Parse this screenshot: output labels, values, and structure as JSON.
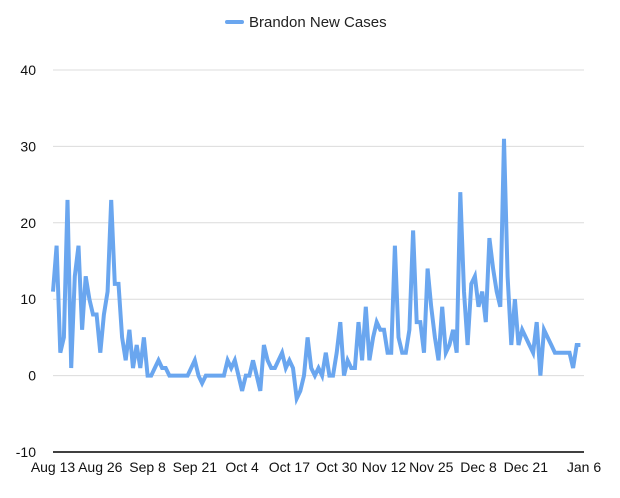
{
  "chart_data": {
    "type": "line",
    "legend": {
      "placement": "top-center",
      "label": "Brandon New Cases"
    },
    "color": "#6aa6ef",
    "grid": true,
    "ylim": [
      -10,
      40
    ],
    "yticks": [
      -10,
      0,
      10,
      20,
      30,
      40
    ],
    "ytick_labels": [
      "-10",
      "0",
      "10",
      "20",
      "30",
      "40"
    ],
    "xlim": [
      "2020-08-13",
      "2021-01-06"
    ],
    "xticks": [
      {
        "date": "2020-08-13",
        "label": "Aug 13"
      },
      {
        "date": "2020-08-26",
        "label": "Aug 26"
      },
      {
        "date": "2020-09-08",
        "label": "Sep 8"
      },
      {
        "date": "2020-09-21",
        "label": "Sep 21"
      },
      {
        "date": "2020-10-04",
        "label": "Oct 4"
      },
      {
        "date": "2020-10-17",
        "label": "Oct 17"
      },
      {
        "date": "2020-10-30",
        "label": "Oct 30"
      },
      {
        "date": "2020-11-12",
        "label": "Nov 12"
      },
      {
        "date": "2020-11-25",
        "label": "Nov 25"
      },
      {
        "date": "2020-12-08",
        "label": "Dec 8"
      },
      {
        "date": "2020-12-21",
        "label": "Dec 21"
      },
      {
        "date": "2021-01-06",
        "label": "Jan 6"
      }
    ],
    "series": [
      {
        "name": "Brandon New Cases",
        "start_date": "2020-08-13",
        "values": [
          11,
          17,
          3,
          5,
          23,
          1,
          13,
          17,
          6,
          13,
          10,
          8,
          8,
          3,
          8,
          11,
          23,
          12,
          12,
          5,
          2,
          6,
          1,
          4,
          1,
          5,
          0,
          0,
          1,
          2,
          1,
          1,
          0,
          0,
          0,
          0,
          0,
          0,
          1,
          2,
          0,
          -1,
          0,
          0,
          0,
          0,
          0,
          0,
          2,
          1,
          2,
          0,
          -2,
          0,
          0,
          2,
          0,
          -2,
          4,
          2,
          1,
          1,
          2,
          3,
          1,
          2,
          1,
          -3,
          -2,
          0,
          5,
          1,
          0,
          1,
          0,
          3,
          0,
          0,
          3,
          7,
          0,
          2,
          1,
          1,
          7,
          2,
          9,
          2,
          5,
          7,
          6,
          6,
          3,
          3,
          17,
          5,
          3,
          3,
          6,
          19,
          7,
          7,
          3,
          14,
          9,
          5,
          2,
          9,
          3,
          4,
          6,
          3,
          24,
          11,
          4,
          12,
          13,
          9,
          11,
          7,
          18,
          14,
          11,
          9,
          31,
          13,
          4,
          10,
          4,
          6,
          5,
          4,
          3,
          7,
          0,
          6,
          5,
          4,
          3,
          3,
          3,
          3,
          3,
          1,
          4,
          4
        ]
      }
    ]
  }
}
